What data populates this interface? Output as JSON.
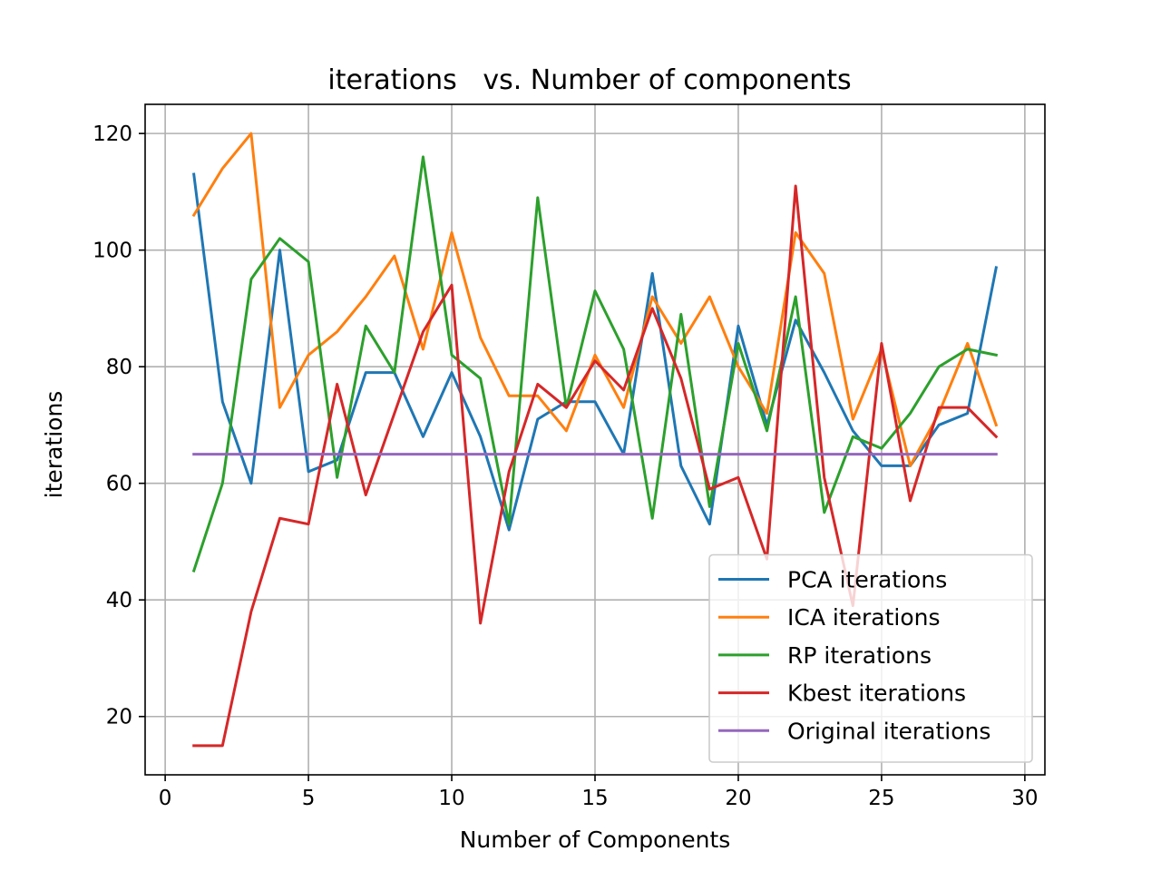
{
  "chart_data": {
    "type": "line",
    "title": "iterations   vs. Number of components",
    "xlabel": "Number of Components",
    "ylabel": "iterations",
    "xlim": [
      -0.7,
      30.7
    ],
    "ylim": [
      10,
      125
    ],
    "xticks": [
      0,
      5,
      10,
      15,
      20,
      25,
      30
    ],
    "yticks": [
      20,
      40,
      60,
      80,
      100,
      120
    ],
    "grid": true,
    "legend_position": "lower-right",
    "x": [
      1,
      2,
      3,
      4,
      5,
      6,
      7,
      8,
      9,
      10,
      11,
      12,
      13,
      14,
      15,
      16,
      17,
      18,
      19,
      20,
      21,
      22,
      23,
      24,
      25,
      26,
      27,
      28,
      29
    ],
    "series": [
      {
        "name": "PCA iterations",
        "color": "#1f77b4",
        "values": [
          113,
          74,
          60,
          100,
          62,
          64,
          79,
          79,
          68,
          79,
          68,
          52,
          71,
          74,
          74,
          65,
          96,
          63,
          53,
          87,
          70,
          88,
          79,
          69,
          63,
          63,
          70,
          72,
          97
        ]
      },
      {
        "name": "ICA iterations",
        "color": "#ff7f0e",
        "values": [
          106,
          114,
          120,
          73,
          82,
          86,
          92,
          99,
          83,
          103,
          85,
          75,
          75,
          69,
          82,
          73,
          92,
          84,
          92,
          80,
          72,
          103,
          96,
          71,
          83,
          63,
          72,
          84,
          70
        ]
      },
      {
        "name": "RP iterations",
        "color": "#2ca02c",
        "values": [
          45,
          60,
          95,
          102,
          98,
          61,
          87,
          79,
          116,
          82,
          78,
          53,
          109,
          73,
          93,
          83,
          54,
          89,
          56,
          84,
          69,
          92,
          55,
          68,
          66,
          72,
          80,
          83,
          82
        ]
      },
      {
        "name": "Kbest iterations",
        "color": "#d62728",
        "values": [
          15,
          15,
          38,
          54,
          53,
          77,
          58,
          72,
          86,
          94,
          36,
          62,
          77,
          73,
          81,
          76,
          90,
          78,
          59,
          61,
          47,
          111,
          61,
          39,
          84,
          57,
          73,
          73,
          68
        ]
      },
      {
        "name": "Original iterations",
        "color": "#9467bd",
        "values": [
          65,
          65,
          65,
          65,
          65,
          65,
          65,
          65,
          65,
          65,
          65,
          65,
          65,
          65,
          65,
          65,
          65,
          65,
          65,
          65,
          65,
          65,
          65,
          65,
          65,
          65,
          65,
          65,
          65
        ]
      }
    ]
  }
}
